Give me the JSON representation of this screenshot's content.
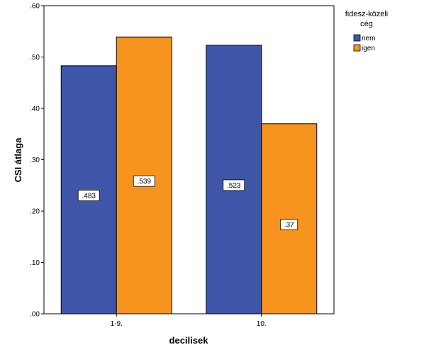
{
  "chart_data": {
    "type": "bar",
    "categories": [
      "1-9.",
      "10."
    ],
    "series": [
      {
        "name": "nem",
        "values": [
          0.483,
          0.523
        ],
        "labels": [
          ".483",
          ".523"
        ],
        "color": "#3f56a8"
      },
      {
        "name": "igen",
        "values": [
          0.539,
          0.37
        ],
        "labels": [
          ".539",
          ".37"
        ],
        "color": "#f7941d"
      }
    ],
    "xlabel": "decilisek",
    "ylabel": "CSI átlaga",
    "ylim": [
      0,
      0.6
    ],
    "yticks": [
      ".00",
      ".10",
      ".20",
      ".30",
      ".40",
      ".50",
      ".60"
    ],
    "legend": {
      "title_line1": "fidesz-közeli",
      "title_line2": "cég",
      "placement": "top-right"
    },
    "grid": false
  }
}
